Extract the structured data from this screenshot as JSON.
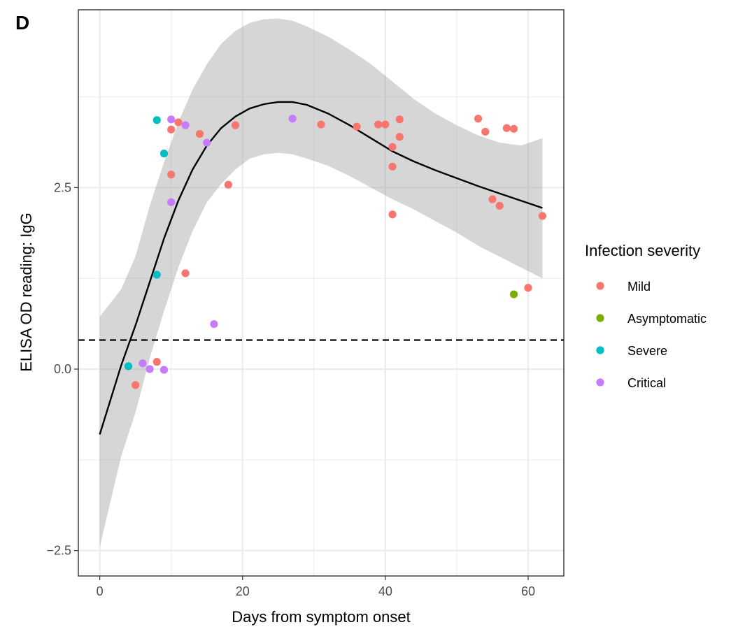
{
  "panel_label": "D",
  "chart_data": {
    "type": "scatter",
    "xlabel": "Days from symptom onset",
    "ylabel": "ELISA OD reading: IgG",
    "xlim": [
      -3,
      65
    ],
    "ylim": [
      -2.85,
      4.95
    ],
    "x_ticks": [
      0,
      20,
      40,
      60
    ],
    "x_tick_labels": [
      "0",
      "20",
      "40",
      "60"
    ],
    "y_ticks": [
      -2.5,
      0,
      2.5
    ],
    "y_tick_labels": [
      "−2.5",
      "0.0",
      "2.5"
    ],
    "y_minor_grid": [
      -1.25,
      1.25,
      3.75
    ],
    "x_minor_grid": [
      10,
      30,
      50
    ],
    "grid": true,
    "threshold_line": {
      "y": 0.4,
      "style": "dashed",
      "color": "#000000"
    },
    "legend": {
      "title": "Infection severity",
      "position": "right"
    },
    "series": [
      {
        "name": "Mild",
        "color": "#F8766D",
        "points": [
          [
            5,
            -0.22
          ],
          [
            8,
            0.1
          ],
          [
            10,
            3.3
          ],
          [
            10,
            2.68
          ],
          [
            11,
            3.4
          ],
          [
            12,
            1.32
          ],
          [
            14,
            3.24
          ],
          [
            18,
            2.54
          ],
          [
            19,
            3.36
          ],
          [
            31,
            3.37
          ],
          [
            36,
            3.34
          ],
          [
            39,
            3.37
          ],
          [
            40,
            3.37
          ],
          [
            41,
            3.06
          ],
          [
            41,
            2.79
          ],
          [
            41,
            2.13
          ],
          [
            42,
            3.44
          ],
          [
            42,
            3.2
          ],
          [
            53,
            3.45
          ],
          [
            54,
            3.27
          ],
          [
            55,
            2.34
          ],
          [
            56,
            2.25
          ],
          [
            57,
            3.32
          ],
          [
            58,
            3.31
          ],
          [
            60,
            1.12
          ],
          [
            62,
            2.11
          ]
        ]
      },
      {
        "name": "Asymptomatic",
        "color": "#7CAE00",
        "points": [
          [
            58,
            1.03
          ]
        ]
      },
      {
        "name": "Severe",
        "color": "#00BFC4",
        "points": [
          [
            4,
            0.04
          ],
          [
            8,
            3.43
          ],
          [
            9,
            2.97
          ],
          [
            8,
            1.3
          ]
        ]
      },
      {
        "name": "Critical",
        "color": "#C77CFF",
        "points": [
          [
            6,
            0.08
          ],
          [
            7,
            0.0
          ],
          [
            9,
            -0.01
          ],
          [
            10,
            3.44
          ],
          [
            10,
            2.3
          ],
          [
            12,
            3.36
          ],
          [
            15,
            3.12
          ],
          [
            16,
            0.62
          ],
          [
            27,
            3.45
          ]
        ]
      }
    ],
    "smooth": {
      "color": "#000000",
      "ribbon_color": "#999999",
      "x": [
        0,
        3,
        5,
        7,
        9,
        11,
        13,
        15,
        17,
        19,
        21,
        23,
        25,
        27,
        29,
        32,
        35,
        38,
        41,
        44,
        47,
        50,
        53,
        56,
        59,
        62
      ],
      "y": [
        -0.9,
        0.05,
        0.6,
        1.2,
        1.8,
        2.32,
        2.75,
        3.08,
        3.32,
        3.48,
        3.59,
        3.65,
        3.68,
        3.68,
        3.64,
        3.52,
        3.36,
        3.18,
        3.0,
        2.86,
        2.74,
        2.63,
        2.52,
        2.42,
        2.32,
        2.22
      ],
      "ymin": [
        -2.45,
        -1.2,
        -0.6,
        0.15,
        0.8,
        1.4,
        1.9,
        2.3,
        2.55,
        2.75,
        2.9,
        2.96,
        2.98,
        2.96,
        2.9,
        2.8,
        2.66,
        2.5,
        2.34,
        2.2,
        2.04,
        1.88,
        1.7,
        1.55,
        1.4,
        1.25
      ],
      "ymax": [
        0.72,
        1.1,
        1.55,
        2.25,
        2.85,
        3.4,
        3.85,
        4.2,
        4.48,
        4.66,
        4.77,
        4.82,
        4.83,
        4.8,
        4.72,
        4.58,
        4.4,
        4.2,
        3.96,
        3.72,
        3.52,
        3.36,
        3.22,
        3.12,
        3.08,
        3.18
      ]
    }
  }
}
